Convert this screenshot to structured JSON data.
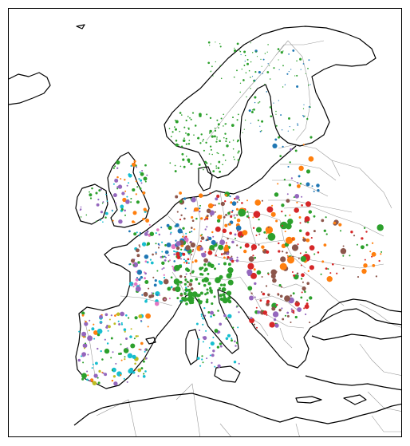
{
  "map": {
    "projection": "lambert-conformal",
    "region": "Europe",
    "lon_range": [
      -12,
      48
    ],
    "lat_range": [
      33,
      72
    ],
    "colors": {
      "coastline": "#000000",
      "borders": "#9a9a9a",
      "background": "#ffffff"
    },
    "series_colors": {
      "blue": "#1f77b4",
      "orange": "#ff7f0e",
      "green": "#2ca02c",
      "red": "#d62728",
      "purple": "#9467bd",
      "brown": "#8c564b",
      "pink": "#e377c2",
      "olive": "#bcbd22",
      "cyan": "#17becf",
      "gray": "#7f7f7f"
    },
    "marker": "circle",
    "marker_sizes": "variable"
  }
}
